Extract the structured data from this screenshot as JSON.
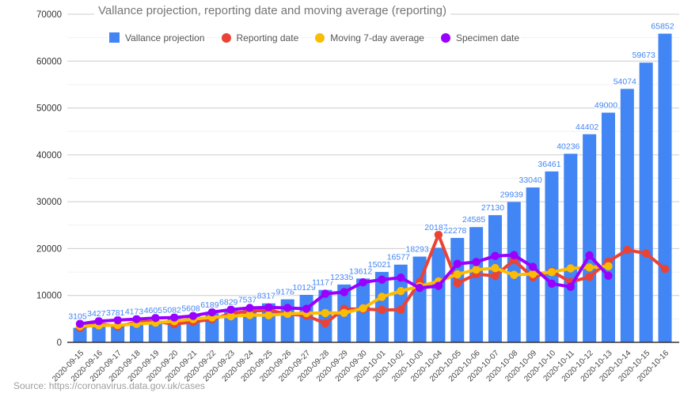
{
  "page": {
    "title": "Vallance projection, reporting date and moving average (reporting)",
    "source": "Source: https://coronavirus.data.gov.uk/cases"
  },
  "legend": [
    {
      "label": "Vallance projection",
      "color": "#4285f4",
      "shape": "square"
    },
    {
      "label": "Reporting date",
      "color": "#ea4335",
      "shape": "circle"
    },
    {
      "label": "Moving 7-day average",
      "color": "#fbbc04",
      "shape": "circle"
    },
    {
      "label": "Specimen date",
      "color": "#9900ff",
      "shape": "circle"
    }
  ],
  "chart_data": {
    "type": "combo-bar-line",
    "title": "Vallance projection, reporting date and moving average (reporting)",
    "xlabel": "",
    "ylabel": "",
    "ylim": [
      0,
      70000
    ],
    "ytick_step": 10000,
    "ytick_minor_step": 5000,
    "y_ticks": [
      "0",
      "10000",
      "20000",
      "30000",
      "40000",
      "50000",
      "60000",
      "70000"
    ],
    "grid": {
      "major_color": "#cccccc",
      "minor_color": "#f1f1f1",
      "axis_color": "#333333"
    },
    "legend_position": "top",
    "categories": [
      "2020-09-15",
      "2020-09-16",
      "2020-09-17",
      "2020-09-18",
      "2020-09-19",
      "2020-09-20",
      "2020-09-21",
      "2020-09-22",
      "2020-09-23",
      "2020-09-24",
      "2020-09-25",
      "2020-09-26",
      "2020-09-27",
      "2020-09-28",
      "2020-09-29",
      "2020-09-30",
      "2020-10-01",
      "2020-10-02",
      "2020-10-03",
      "2020-10-04",
      "2020-10-05",
      "2020-10-06",
      "2020-10-07",
      "2020-10-08",
      "2020-10-09",
      "2020-10-10",
      "2020-10-11",
      "2020-10-12",
      "2020-10-13",
      "2020-10-14",
      "2020-10-15",
      "2020-10-16"
    ],
    "series": [
      {
        "name": "Vallance projection",
        "type": "bar",
        "color": "#4285f4",
        "labels_shown": true,
        "values": [
          3105,
          3427,
          3781,
          4173,
          4605,
          5082,
          5608,
          6189,
          6829,
          7537,
          8317,
          9178,
          10129,
          11177,
          12335,
          13612,
          15021,
          16577,
          18293,
          20187,
          22278,
          24585,
          27130,
          29939,
          33040,
          36461,
          40236,
          44402,
          49000,
          54074,
          59673,
          65852
        ]
      },
      {
        "name": "Reporting date",
        "type": "line",
        "color": "#ea4335",
        "values": [
          3105,
          3991,
          3395,
          4322,
          4422,
          3899,
          4368,
          4926,
          6178,
          6634,
          6874,
          6042,
          5693,
          4044,
          7143,
          7108,
          6914,
          6968,
          12872,
          22961,
          12594,
          14542,
          14162,
          17540,
          13864,
          15166,
          12872,
          13972,
          17234,
          19724,
          18980,
          15650
        ]
      },
      {
        "name": "Moving 7-day average",
        "type": "line",
        "color": "#fbbc04",
        "values": [
          3466,
          3598,
          3679,
          3929,
          4189,
          4501,
          4964,
          5329,
          5560,
          5816,
          5770,
          6087,
          6220,
          6260,
          6273,
          7249,
          9716,
          10937,
          11994,
          13002,
          14520,
          15505,
          15833,
          14391,
          14588,
          14973,
          15767,
          15973,
          16228,
          null,
          null,
          null
        ]
      },
      {
        "name": "Specimen date",
        "type": "line",
        "color": "#9900ff",
        "values": [
          3940,
          4520,
          4740,
          4960,
          5190,
          5300,
          5640,
          6430,
          6990,
          7330,
          7450,
          7330,
          7160,
          10370,
          10710,
          12810,
          13370,
          13800,
          11600,
          12050,
          16750,
          17140,
          18440,
          18610,
          16100,
          12520,
          11840,
          18560,
          14210,
          null,
          null,
          null
        ]
      }
    ]
  }
}
